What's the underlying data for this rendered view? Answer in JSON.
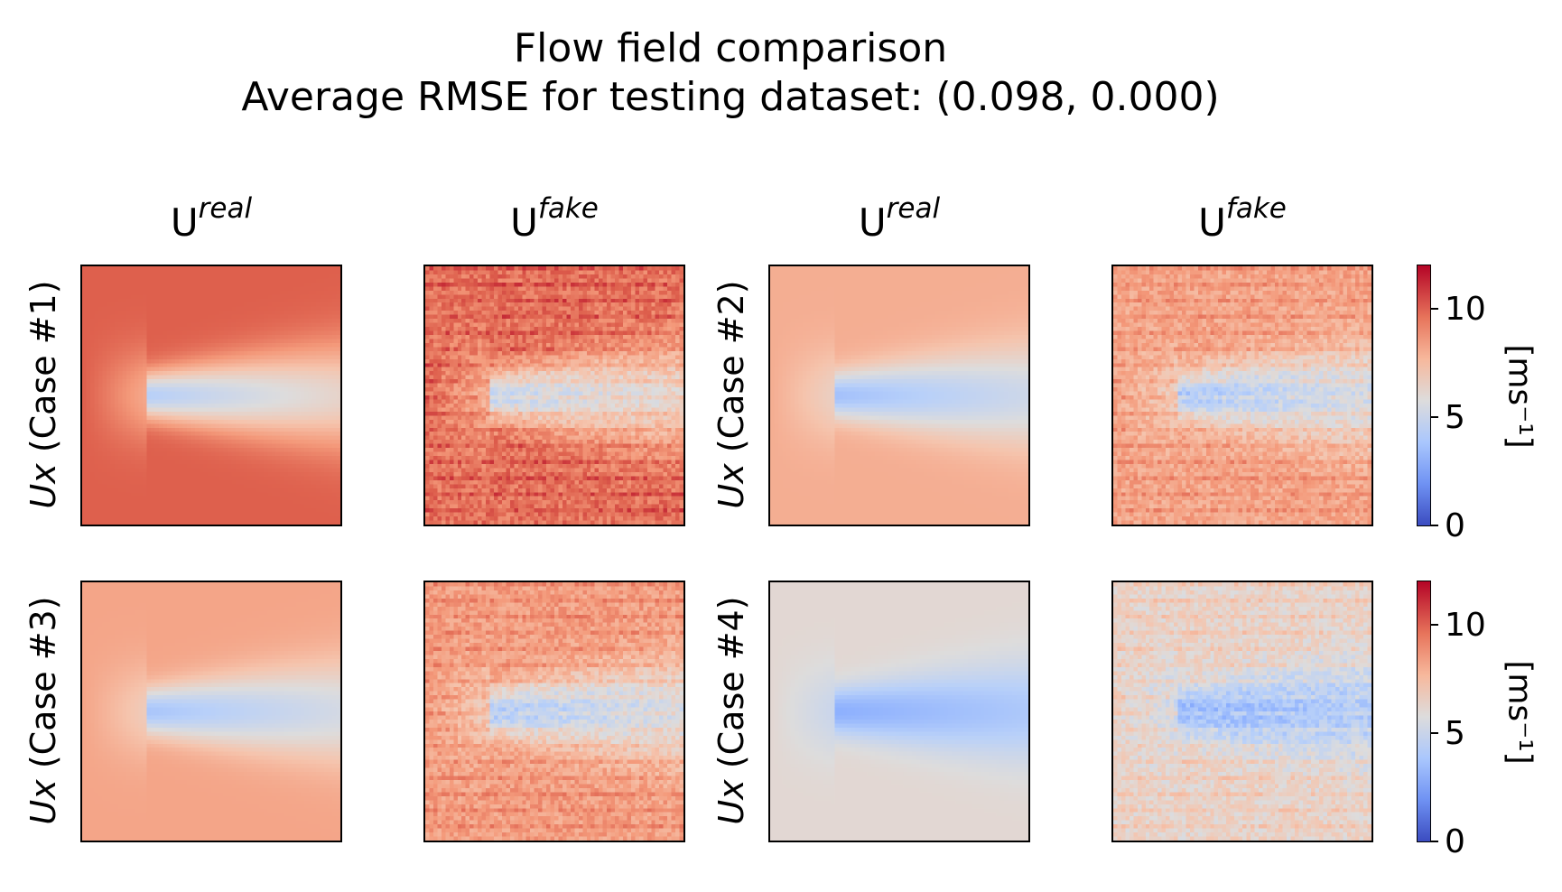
{
  "title": "Flow field comparison",
  "subtitle": "Average RMSE for testing dataset: (0.098, 0.000)",
  "colormap": {
    "name": "coolwarm",
    "vmin": 0,
    "vmax": 12
  },
  "columns": [
    {
      "base": "U",
      "sup": "real"
    },
    {
      "base": "U",
      "sup": "fake"
    },
    {
      "base": "U",
      "sup": "real"
    },
    {
      "base": "U",
      "sup": "fake"
    }
  ],
  "row_labels": [
    {
      "var": "Ux",
      "case": " (Case #1)"
    },
    {
      "var": "Ux",
      "case": " (Case #2)"
    },
    {
      "var": "Ux",
      "case": " (Case #3)"
    },
    {
      "var": "Ux",
      "case": " (Case #4)"
    }
  ],
  "colorbar": {
    "label": "[ms⁻¹]",
    "ticks": [
      "0",
      "5",
      "10"
    ],
    "tick_values": [
      0,
      5,
      10
    ]
  },
  "chart_data": {
    "type": "heatmap",
    "value_range": [
      0,
      12
    ],
    "panels": [
      {
        "case": "Case #1",
        "kind": "real",
        "freestream": 10.5,
        "wake_min": 4.5,
        "noise": 0
      },
      {
        "case": "Case #1",
        "kind": "fake",
        "freestream": 10.0,
        "wake_min": 5.0,
        "noise": 0.8
      },
      {
        "case": "Case #2",
        "kind": "real",
        "freestream": 8.3,
        "wake_min": 3.8,
        "noise": 0
      },
      {
        "case": "Case #2",
        "kind": "fake",
        "freestream": 8.6,
        "wake_min": 4.2,
        "noise": 0.8
      },
      {
        "case": "Case #3",
        "kind": "real",
        "freestream": 8.6,
        "wake_min": 4.0,
        "noise": 0
      },
      {
        "case": "Case #3",
        "kind": "fake",
        "freestream": 8.8,
        "wake_min": 4.3,
        "noise": 0.8
      },
      {
        "case": "Case #4",
        "kind": "real",
        "freestream": 6.3,
        "wake_min": 3.0,
        "noise": 0
      },
      {
        "case": "Case #4",
        "kind": "fake",
        "freestream": 6.6,
        "wake_min": 3.3,
        "noise": 0.8
      }
    ]
  }
}
